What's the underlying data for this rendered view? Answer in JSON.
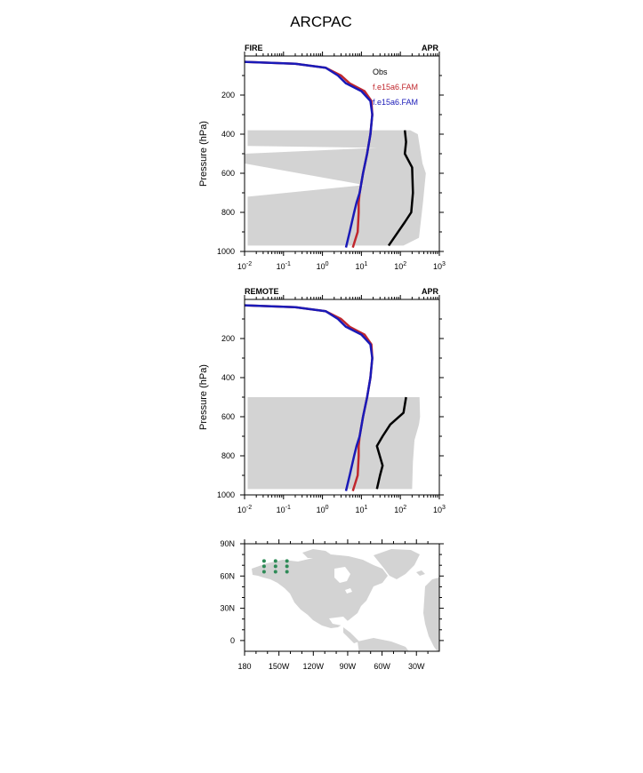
{
  "title": "ARCPAC",
  "colors": {
    "obs": "#000000",
    "model1": "#c0272d",
    "model2": "#1a1ab8",
    "shade": "#d3d3d3",
    "site": "#2e8b57",
    "land": "#d3d3d3"
  },
  "legend": {
    "obs": "Obs",
    "model1": "f.e15a6.FAM",
    "model2": "f.e15a6.FAM"
  },
  "chart_data": [
    {
      "type": "line",
      "left_label": "FIRE",
      "right_label": "APR",
      "ylabel": "Pressure (hPa)",
      "xscale": "log",
      "xlim": [
        0.01,
        1000
      ],
      "ylim": [
        1000,
        0
      ],
      "yticks": [
        200,
        400,
        600,
        800,
        1000
      ],
      "xticks": [
        "10-2",
        "10-1",
        "100",
        "101",
        "102",
        "103"
      ],
      "obs": {
        "x": [
          130,
          140,
          130,
          200,
          210,
          190,
          130,
          50
        ],
        "y": [
          380,
          440,
          500,
          570,
          700,
          800,
          850,
          970
        ]
      },
      "model1": {
        "x": [
          0.01,
          0.2,
          1.2,
          3,
          5,
          12,
          18,
          19,
          17,
          14,
          11,
          9,
          8.5,
          8.5,
          8,
          6
        ],
        "y": [
          30,
          40,
          60,
          100,
          140,
          180,
          230,
          300,
          400,
          500,
          600,
          700,
          750,
          800,
          900,
          980
        ]
      },
      "model2": {
        "x": [
          0.01,
          0.2,
          1.2,
          2.5,
          4,
          10,
          17,
          19,
          17,
          14,
          11,
          9,
          7.5,
          6.5,
          5,
          4
        ],
        "y": [
          30,
          40,
          60,
          100,
          140,
          180,
          230,
          300,
          400,
          500,
          600,
          700,
          750,
          800,
          900,
          980
        ]
      },
      "shade_left": {
        "x": [
          0.012,
          0.012,
          12,
          0.01,
          0.01,
          25,
          0.012,
          0.012
        ],
        "y": [
          970,
          720,
          660,
          550,
          500,
          470,
          460,
          380
        ]
      },
      "shade_right": {
        "x": [
          120,
          300,
          380,
          450,
          370,
          280,
          180,
          50
        ],
        "y": [
          970,
          930,
          750,
          600,
          550,
          400,
          380,
          380
        ]
      }
    },
    {
      "type": "line",
      "left_label": "REMOTE",
      "right_label": "APR",
      "ylabel": "Pressure (hPa)",
      "xscale": "log",
      "xlim": [
        0.01,
        1000
      ],
      "ylim": [
        1000,
        0
      ],
      "yticks": [
        200,
        400,
        600,
        800,
        1000
      ],
      "xticks": [
        "10-2",
        "10-1",
        "100",
        "101",
        "102",
        "103"
      ],
      "obs": {
        "x": [
          140,
          120,
          55,
          35,
          25,
          35,
          30,
          25
        ],
        "y": [
          500,
          580,
          640,
          700,
          750,
          850,
          900,
          970
        ]
      },
      "model1": {
        "x": [
          0.01,
          0.2,
          1.2,
          3,
          5,
          12,
          18,
          19,
          17,
          14,
          11,
          9,
          8.5,
          8.5,
          8,
          6
        ],
        "y": [
          30,
          40,
          60,
          100,
          140,
          180,
          230,
          300,
          400,
          500,
          600,
          700,
          750,
          800,
          900,
          980
        ]
      },
      "model2": {
        "x": [
          0.01,
          0.2,
          1.2,
          2.5,
          4,
          10,
          17,
          19,
          17,
          14,
          11,
          9,
          7.5,
          6.5,
          5,
          4
        ],
        "y": [
          30,
          40,
          60,
          100,
          140,
          180,
          230,
          300,
          400,
          500,
          600,
          700,
          750,
          800,
          900,
          980
        ]
      },
      "shade_left": {
        "x": [
          0.012,
          0.012
        ],
        "y": [
          970,
          500
        ]
      },
      "shade_right": {
        "x": [
          200,
          210,
          230,
          300,
          320,
          310
        ],
        "y": [
          970,
          830,
          720,
          640,
          600,
          500
        ]
      }
    }
  ],
  "map": {
    "lon_ticks": [
      "180",
      "150W",
      "120W",
      "90W",
      "60W",
      "30W"
    ],
    "lon_values": [
      -180,
      -150,
      -120,
      -90,
      -60,
      -30
    ],
    "lat_ticks": [
      "90N",
      "60N",
      "30N",
      "0"
    ],
    "lat_values": [
      90,
      60,
      30,
      0
    ],
    "lon_range": [
      -180,
      -10
    ],
    "lat_range": [
      -10,
      90
    ],
    "sites": [
      {
        "lon": -163,
        "lat": 74
      },
      {
        "lon": -153,
        "lat": 74
      },
      {
        "lon": -143,
        "lat": 74
      },
      {
        "lon": -163,
        "lat": 69
      },
      {
        "lon": -153,
        "lat": 69
      },
      {
        "lon": -143,
        "lat": 69
      },
      {
        "lon": -163,
        "lat": 64
      },
      {
        "lon": -153,
        "lat": 64
      },
      {
        "lon": -143,
        "lat": 64
      }
    ]
  }
}
